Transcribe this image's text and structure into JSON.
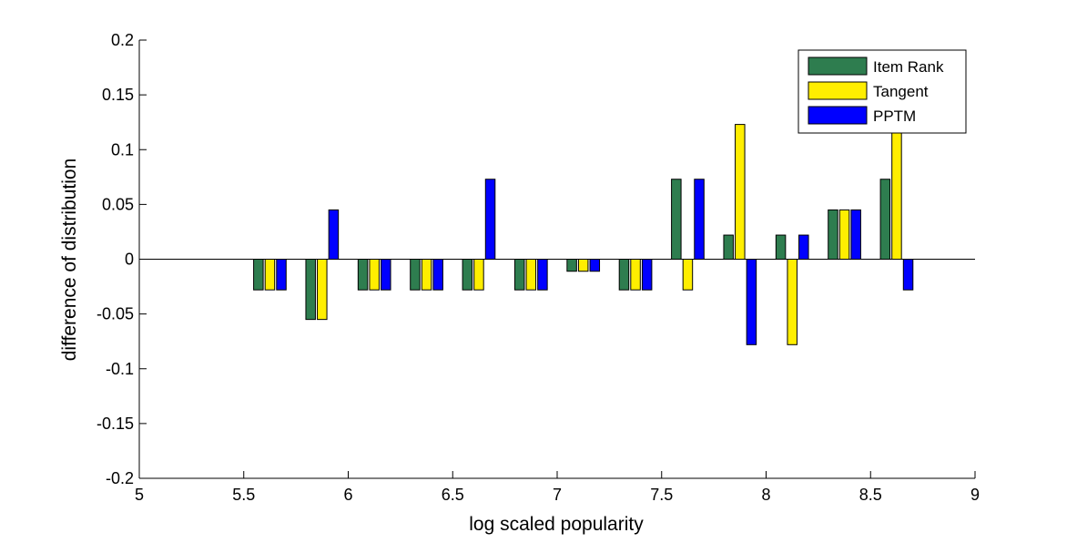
{
  "chart_data": {
    "type": "bar",
    "title": "",
    "xlabel": "log scaled popularity",
    "ylabel": "difference of distribution",
    "xlim": [
      5,
      9
    ],
    "ylim": [
      -0.2,
      0.2
    ],
    "xticks": [
      5,
      5.5,
      6,
      6.5,
      7,
      7.5,
      8,
      8.5,
      9
    ],
    "xtick_labels": [
      "5",
      "5.5",
      "6",
      "6.5",
      "7",
      "7.5",
      "8",
      "8.5",
      "9"
    ],
    "yticks": [
      -0.2,
      -0.15,
      -0.1,
      -0.05,
      0,
      0.05,
      0.1,
      0.15,
      0.2
    ],
    "ytick_labels": [
      "-0.2",
      "-0.15",
      "-0.1",
      "-0.05",
      "0",
      "0.05",
      "0.1",
      "0.15",
      "0.2"
    ],
    "grid": false,
    "legend_position": "top-right",
    "x": [
      5.625,
      5.875,
      6.125,
      6.375,
      6.625,
      6.875,
      7.125,
      7.375,
      7.625,
      7.875,
      8.125,
      8.375,
      8.625
    ],
    "series": [
      {
        "name": "Item Rank",
        "color": "#2e7d4f",
        "values": [
          -0.028,
          -0.055,
          -0.028,
          -0.028,
          -0.028,
          -0.028,
          -0.011,
          -0.028,
          0.073,
          0.022,
          0.022,
          0.045,
          0.073
        ]
      },
      {
        "name": "Tangent",
        "color": "#ffee00",
        "values": [
          -0.028,
          -0.055,
          -0.028,
          -0.028,
          -0.028,
          -0.028,
          -0.011,
          -0.028,
          -0.028,
          0.123,
          -0.078,
          0.045,
          0.123
        ]
      },
      {
        "name": "PPTM",
        "color": "#0000ff",
        "values": [
          -0.028,
          0.045,
          -0.028,
          -0.028,
          0.073,
          -0.028,
          -0.011,
          -0.028,
          0.073,
          -0.078,
          0.022,
          0.045,
          -0.028
        ]
      }
    ]
  }
}
